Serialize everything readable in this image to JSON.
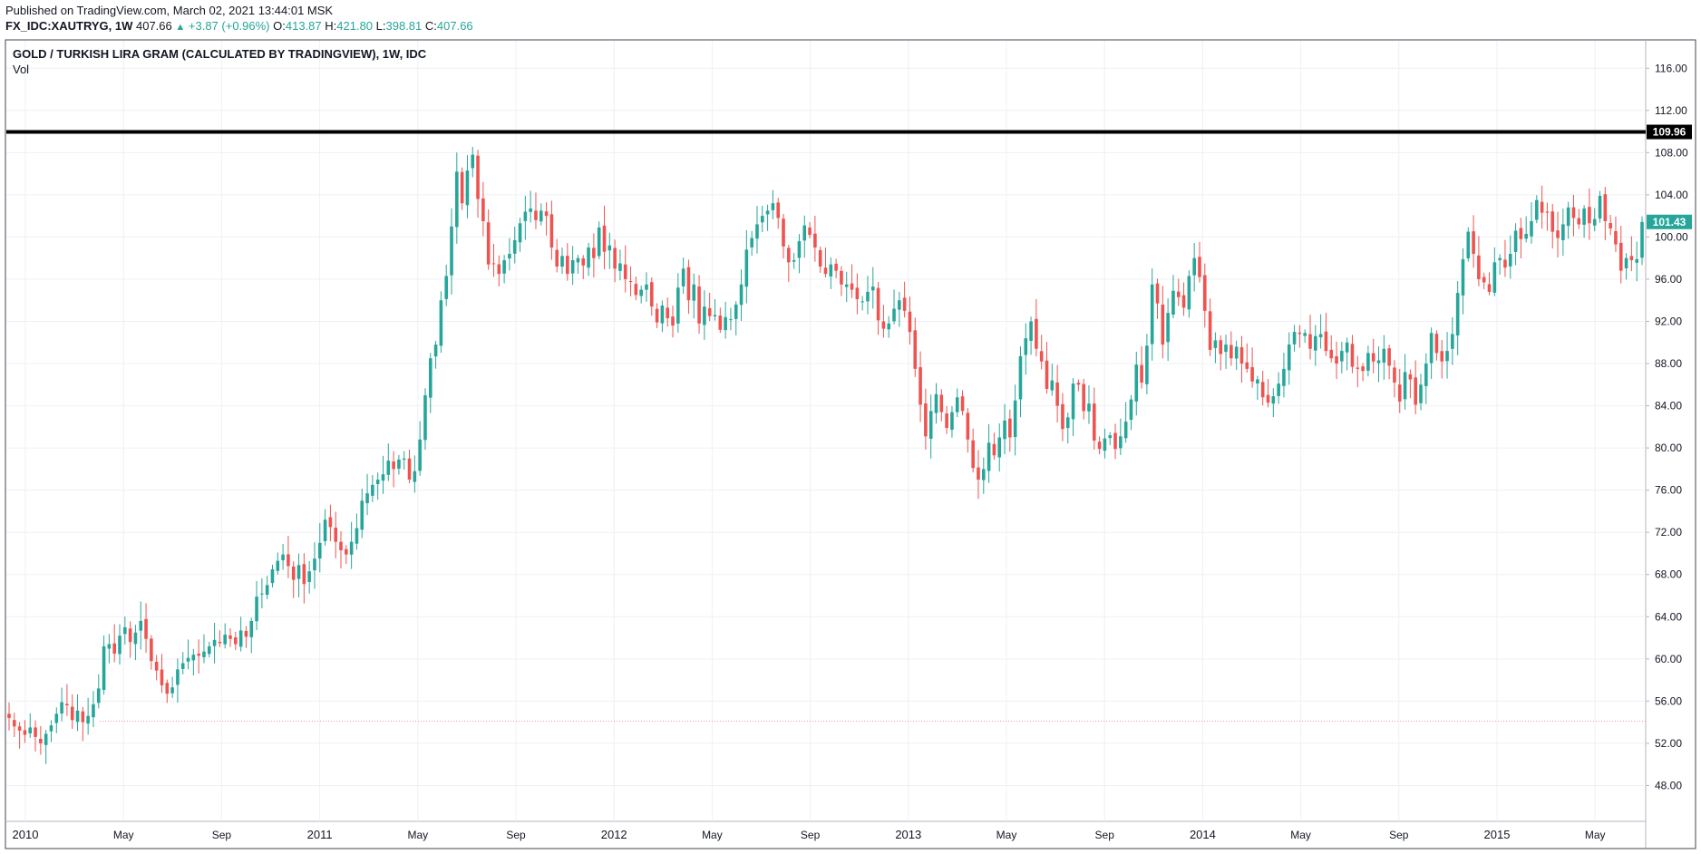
{
  "header": {
    "published": "Published on TradingView.com, March 02, 2021 13:44:01 MSK",
    "symbol": "FX_IDC:XAUTRYG, 1W",
    "last": "407.66",
    "change": "+3.87 (+0.96%)",
    "open_label": "O:",
    "open": "413.87",
    "high_label": "H:",
    "high": "421.80",
    "low_label": "L:",
    "low": "398.81",
    "close_label": "C:",
    "close": "407.66"
  },
  "legend": {
    "title": "GOLD / TURKISH LIRA GRAM (CALCULATED BY TRADINGVIEW), 1W, IDC",
    "indicator": "Vol"
  },
  "colors": {
    "up": "#26a69a",
    "down": "#ef5350",
    "grid": "#eef0f4",
    "hline": "#000000"
  },
  "chart_data": {
    "type": "candlestick",
    "title": "GOLD / TURKISH LIRA GRAM (CALCULATED BY TRADINGVIEW), 1W, IDC",
    "interval": "1W",
    "y_ticks": [
      "48.00",
      "52.00",
      "56.00",
      "60.00",
      "64.00",
      "68.00",
      "72.00",
      "76.00",
      "80.00",
      "84.00",
      "88.00",
      "92.00",
      "96.00",
      "100.00",
      "104.00",
      "108.00",
      "112.00",
      "116.00"
    ],
    "ylim": [
      44.6,
      118.6
    ],
    "x_ticks": [
      "2010",
      "May",
      "Sep",
      "2011",
      "May",
      "Sep",
      "2012",
      "May",
      "Sep",
      "2013",
      "May",
      "Sep",
      "2014",
      "May",
      "Sep",
      "2015",
      "May"
    ],
    "horizontal_line": {
      "value": 109.96,
      "label": "109.96"
    },
    "last_price": {
      "value": 101.43,
      "label": "101.43"
    },
    "reference_line": {
      "value": 54.1,
      "style": "dotted"
    },
    "grid": true,
    "closes": [
      54.4,
      53.6,
      53.2,
      52.8,
      53.5,
      52.6,
      52.0,
      52.9,
      53.7,
      54.8,
      55.9,
      55.6,
      54.2,
      55.1,
      54.0,
      54.6,
      55.7,
      57.2,
      61.2,
      61.4,
      60.5,
      62.2,
      63.0,
      61.6,
      62.5,
      63.6,
      61.9,
      59.8,
      58.9,
      57.5,
      56.7,
      57.3,
      59.0,
      59.6,
      60.1,
      60.4,
      60.3,
      60.7,
      61.2,
      61.8,
      61.5,
      62.3,
      61.9,
      61.4,
      62.7,
      62.1,
      63.6,
      65.9,
      66.2,
      67.0,
      68.5,
      69.3,
      69.9,
      68.8,
      67.5,
      68.9,
      67.1,
      68.3,
      69.5,
      71.0,
      73.2,
      72.5,
      71.1,
      70.3,
      69.9,
      71.1,
      72.4,
      75.0,
      75.7,
      76.5,
      77.0,
      77.5,
      78.8,
      78.0,
      78.9,
      79.0,
      77.0,
      77.8,
      80.8,
      85.0,
      88.5,
      89.8,
      94.0,
      96.3,
      101.0,
      106.2,
      103.2,
      106.3,
      107.8,
      103.6,
      101.5,
      97.4,
      97.5,
      96.5,
      97.8,
      98.4,
      99.7,
      101.3,
      102.4,
      102.7,
      101.6,
      102.5,
      102.0,
      99.0,
      97.2,
      98.2,
      96.5,
      97.8,
      98.0,
      97.3,
      99.0,
      98.0,
      100.9,
      98.6,
      99.2,
      97.0,
      97.5,
      96.0,
      95.8,
      94.5,
      95.0,
      95.5,
      93.4,
      91.9,
      93.5,
      92.3,
      91.6,
      95.2,
      97.0,
      94.0,
      95.5,
      91.8,
      93.4,
      92.5,
      92.6,
      91.2,
      92.4,
      92.2,
      93.6,
      95.5,
      98.8,
      99.9,
      101.2,
      102.0,
      102.5,
      103.2,
      101.8,
      99.1,
      97.6,
      97.8,
      99.6,
      101.1,
      100.2,
      99.0,
      97.2,
      96.5,
      97.4,
      96.8,
      95.5,
      95.5,
      95.0,
      94.1,
      93.9,
      94.8,
      95.3,
      92.1,
      91.3,
      91.8,
      93.2,
      94.0,
      93.0,
      91.0,
      87.5,
      84.1,
      81.1,
      83.5,
      85.1,
      83.4,
      81.9,
      83.4,
      84.8,
      83.5,
      80.8,
      78.1,
      77.0,
      78.0,
      80.5,
      79.3,
      81.0,
      82.6,
      81.0,
      84.5,
      88.7,
      90.4,
      92.0,
      89.4,
      88.2,
      85.6,
      86.4,
      84.0,
      81.8,
      82.9,
      86.1,
      86.0,
      83.5,
      84.2,
      80.7,
      79.9,
      80.9,
      81.2,
      79.9,
      81.1,
      82.5,
      84.6,
      87.9,
      86.2,
      89.7,
      95.5,
      93.7,
      89.8,
      92.8,
      94.9,
      94.3,
      93.3,
      96.3,
      98.0,
      96.2,
      93.0,
      89.3,
      90.2,
      88.9,
      89.8,
      88.5,
      89.6,
      88.0,
      87.5,
      86.3,
      86.5,
      84.8,
      84.3,
      84.9,
      86.1,
      87.5,
      89.8,
      91.0,
      90.8,
      90.9,
      89.4,
      90.6,
      90.8,
      89.2,
      88.5,
      88.0,
      89.2,
      90.0,
      87.7,
      87.5,
      87.3,
      89.0,
      88.2,
      88.3,
      89.4,
      87.8,
      86.2,
      84.4,
      87.2,
      86.5,
      84.1,
      86.0,
      88.0,
      90.9,
      89.0,
      88.2,
      89.2,
      90.8,
      94.7,
      97.9,
      100.5,
      98.4,
      96.0,
      95.7,
      94.8,
      97.6,
      98.0,
      97.1,
      98.4,
      100.6,
      99.8,
      100.3,
      101.5,
      103.5,
      102.3,
      102.3,
      100.5,
      99.9,
      101.2,
      102.8,
      101.8,
      101.2,
      102.7,
      101.3,
      101.7,
      103.9,
      101.5,
      100.8,
      99.3,
      96.8,
      98.0,
      97.8,
      97.9,
      101.43
    ]
  }
}
